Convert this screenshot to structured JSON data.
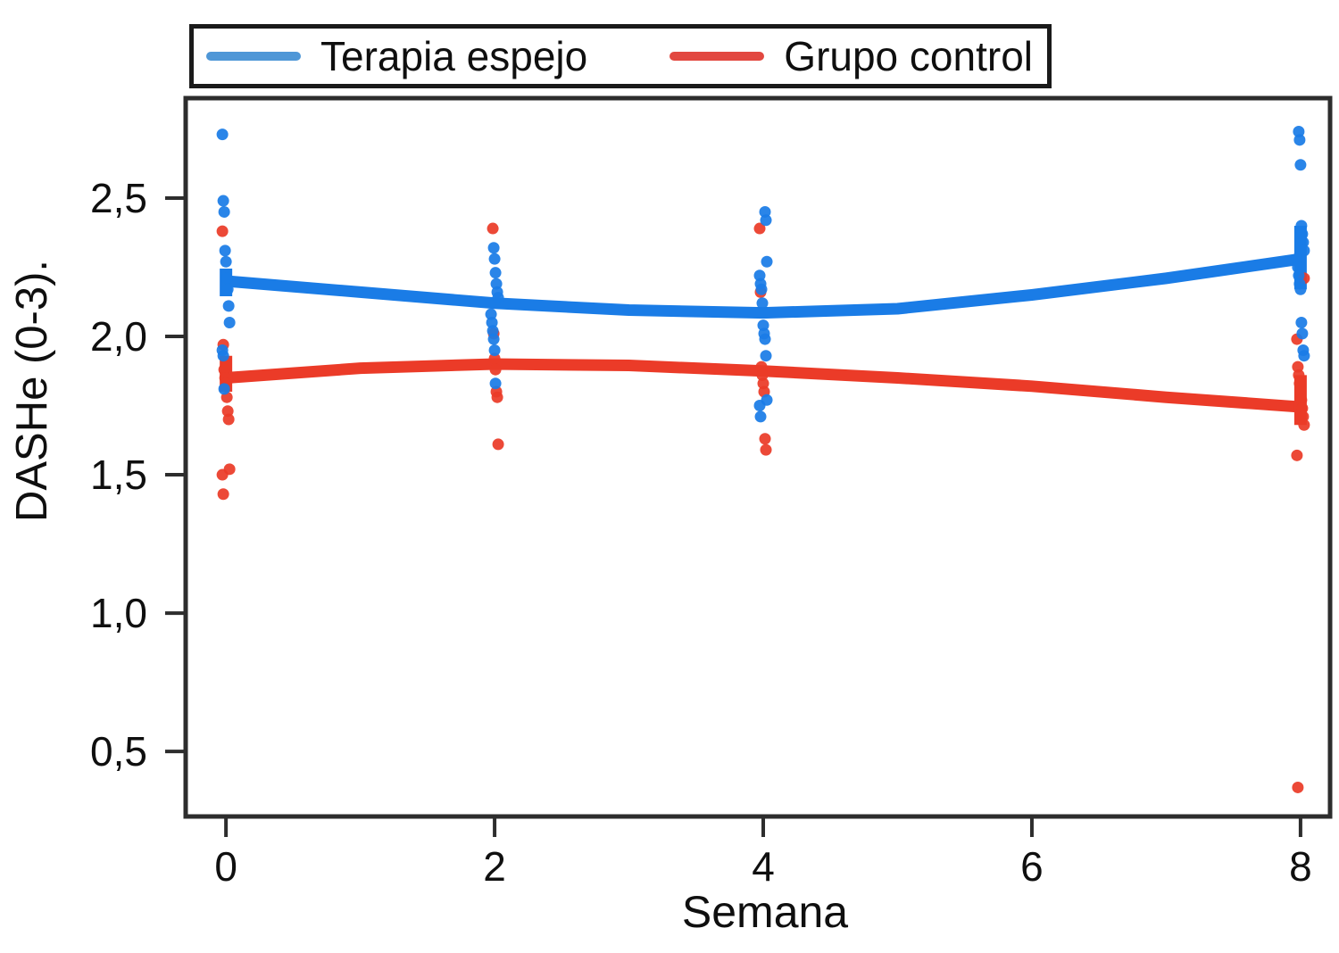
{
  "figure": {
    "background": "#ffffff",
    "frame_color": "#2d2d2d",
    "text_color": "#0f0f0f"
  },
  "chart_data": {
    "type": "line",
    "subtype": "trend-lines-with-jittered-scatter",
    "title": "",
    "xlabel": "Semana",
    "ylabel": "DASHe (0-3).",
    "xlim": [
      -0.3,
      8.22
    ],
    "ylim": [
      0.265,
      2.861
    ],
    "xticks": [
      0,
      2,
      4,
      6,
      8
    ],
    "xtick_labels": [
      "0",
      "2",
      "4",
      "6",
      "8"
    ],
    "yticks": [
      0.5,
      1.0,
      1.5,
      2.0,
      2.5
    ],
    "ytick_labels": [
      "0,5",
      "1,0",
      "1,5",
      "2,0",
      "2,5"
    ],
    "grid": false,
    "frame": true,
    "legend_position": "top-left outside plot, horizontal, boxed",
    "series": [
      {
        "name": "Terapia espejo",
        "color": "#1a7ce6",
        "legend_color": "#4f97d7",
        "trend_x": [
          0,
          1,
          2,
          3,
          4,
          5,
          6,
          7,
          8
        ],
        "trend_y": [
          2.2,
          2.16,
          2.12,
          2.095,
          2.085,
          2.1,
          2.15,
          2.21,
          2.28
        ],
        "end_caps": [
          {
            "x": 0,
            "y1": 2.145,
            "y2": 2.245
          },
          {
            "x": 8,
            "y1": 2.17,
            "y2": 2.4
          }
        ],
        "points": [
          [
            0,
            2.73
          ],
          [
            0,
            2.49
          ],
          [
            0,
            2.45
          ],
          [
            0,
            2.31
          ],
          [
            0,
            2.27
          ],
          [
            0,
            2.21
          ],
          [
            0,
            2.17
          ],
          [
            0,
            2.11
          ],
          [
            0,
            2.05
          ],
          [
            0,
            1.95
          ],
          [
            0,
            1.93
          ],
          [
            0,
            1.81
          ],
          [
            2,
            2.32
          ],
          [
            2,
            2.28
          ],
          [
            2,
            2.23
          ],
          [
            2,
            2.19
          ],
          [
            2,
            2.16
          ],
          [
            2,
            2.14
          ],
          [
            2,
            2.08
          ],
          [
            2,
            2.05
          ],
          [
            2,
            2.02
          ],
          [
            2,
            1.99
          ],
          [
            2,
            1.95
          ],
          [
            2,
            1.83
          ],
          [
            4,
            2.45
          ],
          [
            4,
            2.42
          ],
          [
            4,
            2.27
          ],
          [
            4,
            2.22
          ],
          [
            4,
            2.19
          ],
          [
            4,
            2.17
          ],
          [
            4,
            2.12
          ],
          [
            4,
            2.04
          ],
          [
            4,
            2.01
          ],
          [
            4,
            1.99
          ],
          [
            4,
            1.93
          ],
          [
            4,
            1.77
          ],
          [
            4,
            1.75
          ],
          [
            4,
            1.71
          ],
          [
            8,
            2.74
          ],
          [
            8,
            2.71
          ],
          [
            8,
            2.62
          ],
          [
            8,
            2.4
          ],
          [
            8,
            2.37
          ],
          [
            8,
            2.34
          ],
          [
            8,
            2.31
          ],
          [
            8,
            2.28
          ],
          [
            8,
            2.25
          ],
          [
            8,
            2.22
          ],
          [
            8,
            2.19
          ],
          [
            8,
            2.17
          ],
          [
            8,
            2.05
          ],
          [
            8,
            2.01
          ],
          [
            8,
            1.95
          ],
          [
            8,
            1.93
          ]
        ]
      },
      {
        "name": "Grupo control",
        "color": "#eb3b28",
        "legend_color": "#e24840",
        "trend_x": [
          0,
          1,
          2,
          3,
          4,
          5,
          6,
          7,
          8
        ],
        "trend_y": [
          1.85,
          1.885,
          1.9,
          1.895,
          1.875,
          1.85,
          1.82,
          1.78,
          1.745
        ],
        "end_caps": [
          {
            "x": 0,
            "y1": 1.8,
            "y2": 1.93
          },
          {
            "x": 8,
            "y1": 1.68,
            "y2": 1.86
          }
        ],
        "points": [
          [
            0,
            2.38
          ],
          [
            0,
            1.97
          ],
          [
            0,
            1.88
          ],
          [
            0,
            1.85
          ],
          [
            0,
            1.83
          ],
          [
            0,
            1.78
          ],
          [
            0,
            1.73
          ],
          [
            0,
            1.7
          ],
          [
            0,
            1.52
          ],
          [
            0,
            1.5
          ],
          [
            0,
            1.43
          ],
          [
            2,
            2.39
          ],
          [
            2,
            2.01
          ],
          [
            2,
            1.92
          ],
          [
            2,
            1.88
          ],
          [
            2,
            1.8
          ],
          [
            2,
            1.78
          ],
          [
            2,
            1.61
          ],
          [
            4,
            2.39
          ],
          [
            4,
            2.16
          ],
          [
            4,
            1.89
          ],
          [
            4,
            1.86
          ],
          [
            4,
            1.83
          ],
          [
            4,
            1.8
          ],
          [
            4,
            1.63
          ],
          [
            4,
            1.59
          ],
          [
            8,
            2.21
          ],
          [
            8,
            1.99
          ],
          [
            8,
            1.89
          ],
          [
            8,
            1.86
          ],
          [
            8,
            1.83
          ],
          [
            8,
            1.8
          ],
          [
            8,
            1.77
          ],
          [
            8,
            1.74
          ],
          [
            8,
            1.71
          ],
          [
            8,
            1.68
          ],
          [
            8,
            1.57
          ],
          [
            8,
            0.37
          ]
        ]
      }
    ]
  }
}
